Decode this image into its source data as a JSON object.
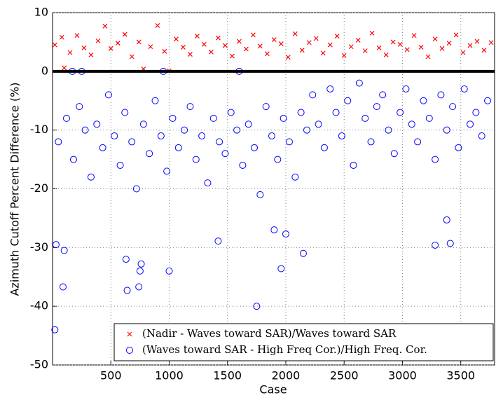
{
  "chart_data": {
    "type": "scatter",
    "xlabel": "Case",
    "ylabel": "Azimuth Cutoff Percent Difference (%)",
    "xlim": [
      0,
      3790
    ],
    "ylim": [
      -50,
      10
    ],
    "xticks": [
      500,
      1000,
      1500,
      2000,
      2500,
      3000,
      3500
    ],
    "yticks": [
      10,
      0,
      -10,
      -20,
      -30,
      -40,
      -50
    ],
    "grid": true,
    "reference_line": 0,
    "legend": "lower right",
    "series": [
      {
        "name": "(Nadir - Waves toward SAR)/Waves toward SAR",
        "color": "#ff0000",
        "marker": "x",
        "x": [
          20,
          80,
          100,
          150,
          210,
          270,
          330,
          390,
          450,
          500,
          560,
          620,
          680,
          740,
          780,
          840,
          900,
          960,
          1000,
          1060,
          1120,
          1180,
          1240,
          1300,
          1360,
          1420,
          1480,
          1540,
          1600,
          1660,
          1720,
          1780,
          1840,
          1900,
          1960,
          2020,
          2080,
          2140,
          2200,
          2260,
          2320,
          2380,
          2440,
          2500,
          2560,
          2620,
          2680,
          2740,
          2800,
          2860,
          2920,
          2980,
          3040,
          3100,
          3160,
          3220,
          3280,
          3340,
          3400,
          3460,
          3520,
          3580,
          3640,
          3700,
          3760
        ],
        "values": [
          4.5,
          5.8,
          0.6,
          3.2,
          6.1,
          4.0,
          2.8,
          5.2,
          7.7,
          3.9,
          4.8,
          6.3,
          2.5,
          5.0,
          0.4,
          4.2,
          7.8,
          3.4,
          0.1,
          5.5,
          4.1,
          2.9,
          6.0,
          4.6,
          3.3,
          5.7,
          4.4,
          2.6,
          5.1,
          3.8,
          6.2,
          4.3,
          3.0,
          5.4,
          4.7,
          2.4,
          6.4,
          3.6,
          4.9,
          5.6,
          3.1,
          4.5,
          6.0,
          2.7,
          4.2,
          5.3,
          3.5,
          6.5,
          4.0,
          2.8,
          5.0,
          4.6,
          3.7,
          6.1,
          4.1,
          2.5,
          5.5,
          3.9,
          4.8,
          6.2,
          3.2,
          4.4,
          5.1,
          3.6,
          4.9
        ]
      },
      {
        "name": "(Waves toward SAR - High Freq Cor.)/High Freq. Cor.",
        "color": "#0000ff",
        "marker": "o",
        "x": [
          50,
          120,
          180,
          230,
          280,
          330,
          380,
          430,
          480,
          530,
          580,
          620,
          680,
          720,
          780,
          830,
          880,
          930,
          980,
          1030,
          1080,
          1130,
          1180,
          1230,
          1280,
          1330,
          1380,
          1430,
          1480,
          1530,
          1580,
          1630,
          1680,
          1730,
          1780,
          1830,
          1880,
          1930,
          1980,
          2030,
          2080,
          2130,
          2180,
          2230,
          2280,
          2330,
          2380,
          2430,
          2480,
          2530,
          2580,
          2630,
          2680,
          2730,
          2780,
          2830,
          2880,
          2930,
          2980,
          3030,
          3080,
          3130,
          3180,
          3230,
          3280,
          3330,
          3380,
          3430,
          3480,
          3530,
          3580,
          3630,
          3680,
          3730,
          20,
          90,
          30,
          100,
          640,
          740,
          750,
          1000,
          1750,
          1960,
          2150,
          3280,
          3410,
          3380,
          630,
          760,
          1420,
          2000,
          1900,
          170,
          250,
          950,
          1600
        ],
        "values": [
          -12,
          -8,
          -15,
          -6,
          -10,
          -18,
          -9,
          -13,
          -4,
          -11,
          -16,
          -7,
          -12,
          -20,
          -9,
          -14,
          -5,
          -11,
          -17,
          -8,
          -13,
          -10,
          -6,
          -15,
          -11,
          -19,
          -8,
          -12,
          -14,
          -7,
          -10,
          -16,
          -9,
          -13,
          -21,
          -6,
          -11,
          -15,
          -8,
          -12,
          -18,
          -7,
          -10,
          -4,
          -9,
          -13,
          -3,
          -7,
          -11,
          -5,
          -16,
          -2,
          -8,
          -12,
          -6,
          -4,
          -10,
          -14,
          -7,
          -3,
          -9,
          -12,
          -5,
          -8,
          -15,
          -4,
          -10,
          -6,
          -13,
          -3,
          -9,
          -7,
          -11,
          -5,
          -44,
          -36.7,
          -29.5,
          -30.5,
          -37.3,
          -36.7,
          -34,
          -34,
          -40,
          -33.6,
          -31,
          -29.6,
          -29.3,
          -25.3,
          -32,
          -32.8,
          -28.9,
          -27.7,
          -27,
          0,
          0,
          0,
          0
        ]
      }
    ]
  }
}
